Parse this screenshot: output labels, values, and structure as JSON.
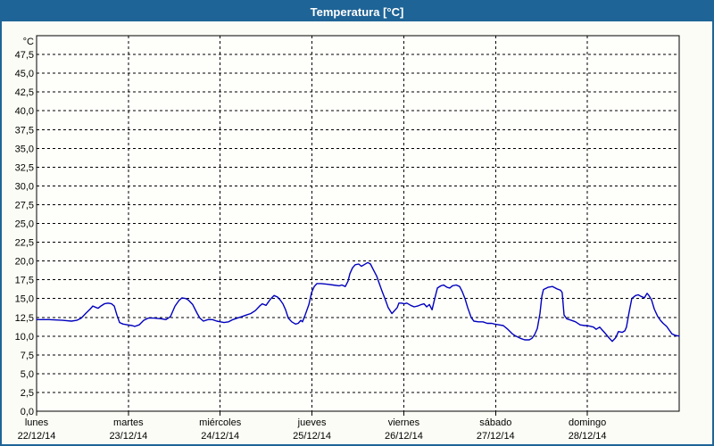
{
  "window": {
    "title": "Temperatura [°C]",
    "title_bar_color": "#1E6496",
    "border_color": "#1E6496",
    "background_color": "#FCFCF6"
  },
  "chart_data": {
    "type": "line",
    "title": "Temperatura [°C]",
    "plot_background": "#FEFEFB",
    "grid": "dashed-black",
    "legend_position": "none",
    "y_axis": {
      "unit_label": "°C",
      "min": 0,
      "max": 50,
      "tick_step": 2.5,
      "tick_values": [
        0,
        2.5,
        5,
        7.5,
        10,
        12.5,
        15,
        17.5,
        20,
        22.5,
        25,
        27.5,
        30,
        32.5,
        35,
        37.5,
        40,
        42.5,
        45,
        47.5
      ],
      "tick_labels": [
        "0,0",
        "2,5",
        "5,0",
        "7,5",
        "10,0",
        "12,5",
        "15,0",
        "17,5",
        "20,0",
        "22,5",
        "25,0",
        "27,5",
        "30,0",
        "32,5",
        "35,0",
        "37,5",
        "40,0",
        "42,5",
        "45,0",
        "47,5"
      ]
    },
    "x_axis": {
      "total_hours": 168,
      "hours_per_day": 24,
      "days": [
        {
          "name": "lunes",
          "date": "22/12/14"
        },
        {
          "name": "martes",
          "date": "23/12/14"
        },
        {
          "name": "miércoles",
          "date": "24/12/14"
        },
        {
          "name": "jueves",
          "date": "25/12/14"
        },
        {
          "name": "viernes",
          "date": "26/12/14"
        },
        {
          "name": "sábado",
          "date": "27/12/14"
        },
        {
          "name": "domingo",
          "date": "28/12/14"
        }
      ]
    },
    "series": [
      {
        "name": "Temperatura",
        "color": "#0000BE",
        "points": [
          [
            0,
            12.2
          ],
          [
            3.3,
            12.2
          ],
          [
            6.8,
            12.1
          ],
          [
            9.1,
            12.0
          ],
          [
            10.5,
            12.1
          ],
          [
            11.7,
            12.4
          ],
          [
            12.8,
            13.0
          ],
          [
            14,
            13.6
          ],
          [
            14.7,
            14.0
          ],
          [
            15.6,
            13.8
          ],
          [
            16.1,
            13.7
          ],
          [
            16.8,
            14.0
          ],
          [
            17.7,
            14.3
          ],
          [
            18.7,
            14.4
          ],
          [
            19.6,
            14.3
          ],
          [
            20.3,
            14.0
          ],
          [
            21,
            12.8
          ],
          [
            21.7,
            11.8
          ],
          [
            22.6,
            11.6
          ],
          [
            23.8,
            11.5
          ],
          [
            25,
            11.4
          ],
          [
            25.7,
            11.3
          ],
          [
            26.8,
            11.5
          ],
          [
            28,
            12.1
          ],
          [
            29.2,
            12.4
          ],
          [
            30.6,
            12.4
          ],
          [
            32.7,
            12.3
          ],
          [
            33.8,
            12.2
          ],
          [
            35,
            12.6
          ],
          [
            36.2,
            14.0
          ],
          [
            37.3,
            14.8
          ],
          [
            38,
            15.1
          ],
          [
            39,
            15.0
          ],
          [
            39.7,
            14.8
          ],
          [
            40.8,
            14.2
          ],
          [
            42,
            13.0
          ],
          [
            42.7,
            12.4
          ],
          [
            43.6,
            12.0
          ],
          [
            44.8,
            12.2
          ],
          [
            46,
            12.2
          ],
          [
            47.1,
            12.0
          ],
          [
            48.1,
            11.9
          ],
          [
            49,
            11.8
          ],
          [
            50.2,
            11.9
          ],
          [
            51.3,
            12.2
          ],
          [
            52.5,
            12.4
          ],
          [
            53.7,
            12.6
          ],
          [
            54.8,
            12.8
          ],
          [
            56,
            13.0
          ],
          [
            57.2,
            13.4
          ],
          [
            58.3,
            14.0
          ],
          [
            59,
            14.3
          ],
          [
            60,
            14.1
          ],
          [
            61.1,
            14.9
          ],
          [
            62.1,
            15.4
          ],
          [
            63,
            15.2
          ],
          [
            63.7,
            14.8
          ],
          [
            64.4,
            14.3
          ],
          [
            65.1,
            13.5
          ],
          [
            65.8,
            12.4
          ],
          [
            66.7,
            11.9
          ],
          [
            67.7,
            11.6
          ],
          [
            68.4,
            11.7
          ],
          [
            69.1,
            12.1
          ],
          [
            69.5,
            11.9
          ],
          [
            70.2,
            12.8
          ],
          [
            71.2,
            14.2
          ],
          [
            71.9,
            15.8
          ],
          [
            72.6,
            16.6
          ],
          [
            73.3,
            17.0
          ],
          [
            74.4,
            17.0
          ],
          [
            76.1,
            16.9
          ],
          [
            77.5,
            16.8
          ],
          [
            79.1,
            16.7
          ],
          [
            79.8,
            16.8
          ],
          [
            80.7,
            16.6
          ],
          [
            81.4,
            17.3
          ],
          [
            81.9,
            18.3
          ],
          [
            82.6,
            19.1
          ],
          [
            83.3,
            19.5
          ],
          [
            84.2,
            19.6
          ],
          [
            84.9,
            19.3
          ],
          [
            85.6,
            19.5
          ],
          [
            86.6,
            19.8
          ],
          [
            87.3,
            19.6
          ],
          [
            88,
            18.9
          ],
          [
            88.9,
            18.0
          ],
          [
            89.6,
            17.0
          ],
          [
            90.3,
            16.0
          ],
          [
            91.2,
            14.8
          ],
          [
            91.9,
            13.8
          ],
          [
            92.9,
            13.0
          ],
          [
            93.6,
            13.4
          ],
          [
            94.3,
            13.8
          ],
          [
            94.7,
            14.4
          ],
          [
            95.4,
            14.4
          ],
          [
            96.1,
            14.3
          ],
          [
            96.8,
            14.4
          ],
          [
            97.8,
            14.1
          ],
          [
            98.7,
            13.9
          ],
          [
            99.6,
            14.0
          ],
          [
            100.6,
            14.2
          ],
          [
            101.3,
            14.3
          ],
          [
            102,
            13.9
          ],
          [
            102.7,
            14.2
          ],
          [
            103.4,
            13.5
          ],
          [
            104.1,
            15.0
          ],
          [
            104.8,
            16.4
          ],
          [
            105.7,
            16.7
          ],
          [
            106.4,
            16.8
          ],
          [
            107.3,
            16.5
          ],
          [
            108,
            16.4
          ],
          [
            108.7,
            16.7
          ],
          [
            109.7,
            16.8
          ],
          [
            110.6,
            16.6
          ],
          [
            111.3,
            15.9
          ],
          [
            112,
            15.0
          ],
          [
            112.7,
            13.8
          ],
          [
            113.6,
            12.5
          ],
          [
            114.3,
            12.0
          ],
          [
            115.5,
            11.9
          ],
          [
            116.7,
            11.9
          ],
          [
            117.8,
            11.7
          ],
          [
            119,
            11.7
          ],
          [
            119.7,
            11.6
          ],
          [
            120.9,
            11.5
          ],
          [
            122,
            11.4
          ],
          [
            123.2,
            10.9
          ],
          [
            124.4,
            10.3
          ],
          [
            125.3,
            10.0
          ],
          [
            126.5,
            9.7
          ],
          [
            127.6,
            9.5
          ],
          [
            128.8,
            9.5
          ],
          [
            129.5,
            9.7
          ],
          [
            130.2,
            10.2
          ],
          [
            130.9,
            11.0
          ],
          [
            131.6,
            13.0
          ],
          [
            132.1,
            15.3
          ],
          [
            132.5,
            16.2
          ],
          [
            133.7,
            16.5
          ],
          [
            134.9,
            16.6
          ],
          [
            136,
            16.3
          ],
          [
            137,
            16.1
          ],
          [
            137.4,
            15.8
          ],
          [
            137.9,
            12.8
          ],
          [
            138.6,
            12.3
          ],
          [
            139.8,
            12.1
          ],
          [
            140.9,
            11.9
          ],
          [
            142.1,
            11.5
          ],
          [
            143.3,
            11.4
          ],
          [
            144,
            11.4
          ],
          [
            144.9,
            11.3
          ],
          [
            145.6,
            11.2
          ],
          [
            146.3,
            10.9
          ],
          [
            147.2,
            11.2
          ],
          [
            147.9,
            10.8
          ],
          [
            148.6,
            10.4
          ],
          [
            149.6,
            9.8
          ],
          [
            150.5,
            9.3
          ],
          [
            151.4,
            9.8
          ],
          [
            152.1,
            10.6
          ],
          [
            153.1,
            10.5
          ],
          [
            153.8,
            10.7
          ],
          [
            154.2,
            11.2
          ],
          [
            154.9,
            13.2
          ],
          [
            155.6,
            15.0
          ],
          [
            156.6,
            15.4
          ],
          [
            157.3,
            15.5
          ],
          [
            158,
            15.3
          ],
          [
            158.9,
            15.1
          ],
          [
            159.6,
            15.7
          ],
          [
            160.1,
            15.4
          ],
          [
            160.8,
            14.8
          ],
          [
            161.5,
            13.6
          ],
          [
            162.4,
            12.6
          ],
          [
            163.1,
            12.1
          ],
          [
            163.8,
            11.7
          ],
          [
            164.7,
            11.3
          ],
          [
            165.4,
            10.8
          ],
          [
            166.1,
            10.3
          ],
          [
            167,
            10.1
          ],
          [
            168,
            10.0
          ]
        ]
      }
    ]
  }
}
